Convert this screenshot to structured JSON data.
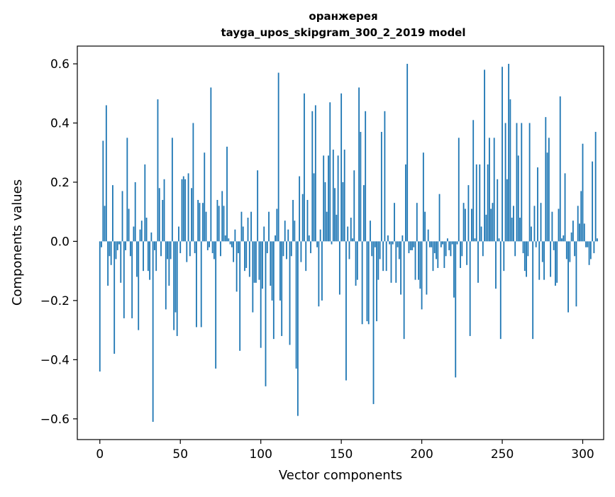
{
  "chart_data": {
    "type": "bar",
    "title": "оранжерея",
    "subtitle": "tayga_upos_skipgram_300_2_2019 model",
    "xlabel": "Vector components",
    "ylabel": "Components values",
    "xlim": [
      -14,
      313
    ],
    "ylim": [
      -0.67,
      0.66
    ],
    "xticks": [
      0,
      50,
      100,
      150,
      200,
      250,
      300
    ],
    "xtick_labels": [
      "0",
      "50",
      "100",
      "150",
      "200",
      "250",
      "300"
    ],
    "yticks": [
      -0.6,
      -0.4,
      -0.2,
      0.0,
      0.2,
      0.4,
      0.6
    ],
    "ytick_labels": [
      "−0.6",
      "−0.4",
      "−0.2",
      "0.0",
      "0.2",
      "0.4",
      "0.6"
    ],
    "grid": false,
    "bar_color": "#1f77b4",
    "values": [
      -0.44,
      -0.02,
      0.34,
      0.12,
      0.46,
      -0.15,
      -0.05,
      -0.08,
      0.19,
      -0.38,
      -0.06,
      -0.03,
      -0.01,
      -0.14,
      0.17,
      -0.26,
      -0.03,
      0.35,
      0.11,
      -0.05,
      -0.26,
      0.05,
      0.2,
      -0.12,
      -0.3,
      0.04,
      0.07,
      -0.1,
      0.26,
      0.08,
      -0.1,
      -0.13,
      0.03,
      -0.61,
      -0.03,
      -0.1,
      0.48,
      0.18,
      -0.05,
      0.14,
      0.21,
      -0.23,
      -0.06,
      -0.15,
      -0.06,
      0.35,
      -0.3,
      -0.24,
      -0.32,
      0.05,
      -0.04,
      0.21,
      0.22,
      0.21,
      -0.07,
      0.23,
      -0.05,
      0.18,
      0.4,
      -0.04,
      -0.29,
      0.14,
      0.13,
      -0.29,
      0.13,
      0.3,
      0.1,
      -0.03,
      -0.02,
      0.52,
      -0.04,
      -0.06,
      -0.43,
      0.14,
      0.12,
      -0.05,
      0.17,
      0.12,
      0.02,
      0.32,
      0.01,
      -0.01,
      -0.02,
      -0.07,
      0.04,
      -0.17,
      -0.04,
      -0.37,
      0.1,
      0.05,
      -0.1,
      -0.09,
      0.08,
      -0.12,
      0.1,
      -0.24,
      -0.14,
      -0.14,
      0.24,
      -0.13,
      -0.36,
      -0.16,
      0.05,
      -0.49,
      -0.04,
      0.1,
      -0.15,
      -0.2,
      -0.33,
      0.02,
      0.11,
      0.57,
      -0.2,
      -0.32,
      -0.05,
      0.07,
      -0.06,
      0.04,
      -0.35,
      -0.05,
      0.14,
      0.07,
      -0.43,
      -0.59,
      0.22,
      -0.07,
      0.16,
      0.5,
      -0.1,
      0.14,
      0.02,
      -0.04,
      0.44,
      0.23,
      0.46,
      -0.02,
      -0.22,
      0.04,
      -0.2,
      0.29,
      0.2,
      0.1,
      0.29,
      0.47,
      -0.01,
      0.31,
      0.18,
      0.09,
      0.29,
      -0.18,
      0.5,
      0.2,
      0.31,
      -0.47,
      0.05,
      -0.06,
      0.08,
      0.01,
      0.24,
      -0.15,
      -0.13,
      0.52,
      0.37,
      -0.28,
      0.19,
      0.44,
      -0.27,
      -0.28,
      0.07,
      -0.05,
      -0.55,
      -0.02,
      -0.27,
      -0.13,
      -0.06,
      0.37,
      -0.1,
      0.44,
      -0.1,
      0.02,
      -0.01,
      -0.14,
      -0.01,
      0.13,
      -0.14,
      -0.02,
      -0.06,
      -0.18,
      0.02,
      -0.33,
      0.26,
      0.6,
      -0.04,
      -0.03,
      -0.03,
      -0.02,
      -0.13,
      0.13,
      -0.13,
      -0.16,
      -0.23,
      0.3,
      0.1,
      -0.18,
      0.04,
      -0.02,
      -0.02,
      -0.1,
      -0.04,
      -0.06,
      -0.09,
      0.16,
      -0.02,
      -0.01,
      -0.09,
      -0.05,
      0.01,
      -0.03,
      -0.05,
      -0.01,
      -0.19,
      -0.46,
      -0.01,
      0.35,
      -0.09,
      -0.05,
      0.13,
      0.11,
      -0.08,
      0.19,
      -0.32,
      0.11,
      0.41,
      0.01,
      0.26,
      -0.14,
      0.26,
      0.05,
      -0.05,
      0.58,
      0.09,
      0.26,
      0.35,
      0.11,
      0.13,
      0.35,
      -0.16,
      0.21,
      0.01,
      -0.33,
      0.59,
      -0.1,
      0.4,
      0.21,
      0.6,
      0.48,
      0.08,
      0.12,
      -0.05,
      0.4,
      0.29,
      0.08,
      0.4,
      -0.04,
      -0.1,
      -0.12,
      -0.05,
      0.4,
      0.05,
      -0.33,
      0.12,
      -0.02,
      0.25,
      -0.13,
      0.13,
      -0.07,
      -0.13,
      0.42,
      0.3,
      0.35,
      -0.12,
      0.1,
      -0.03,
      -0.15,
      -0.14,
      0.11,
      0.49,
      0.01,
      0.02,
      0.23,
      -0.06,
      -0.24,
      -0.07,
      0.03,
      0.07,
      -0.05,
      -0.22,
      0.12,
      0.06,
      0.17,
      0.33,
      0.06,
      -0.02,
      -0.02,
      -0.08,
      -0.06,
      0.27,
      -0.04,
      0.37,
      0.01
    ]
  }
}
